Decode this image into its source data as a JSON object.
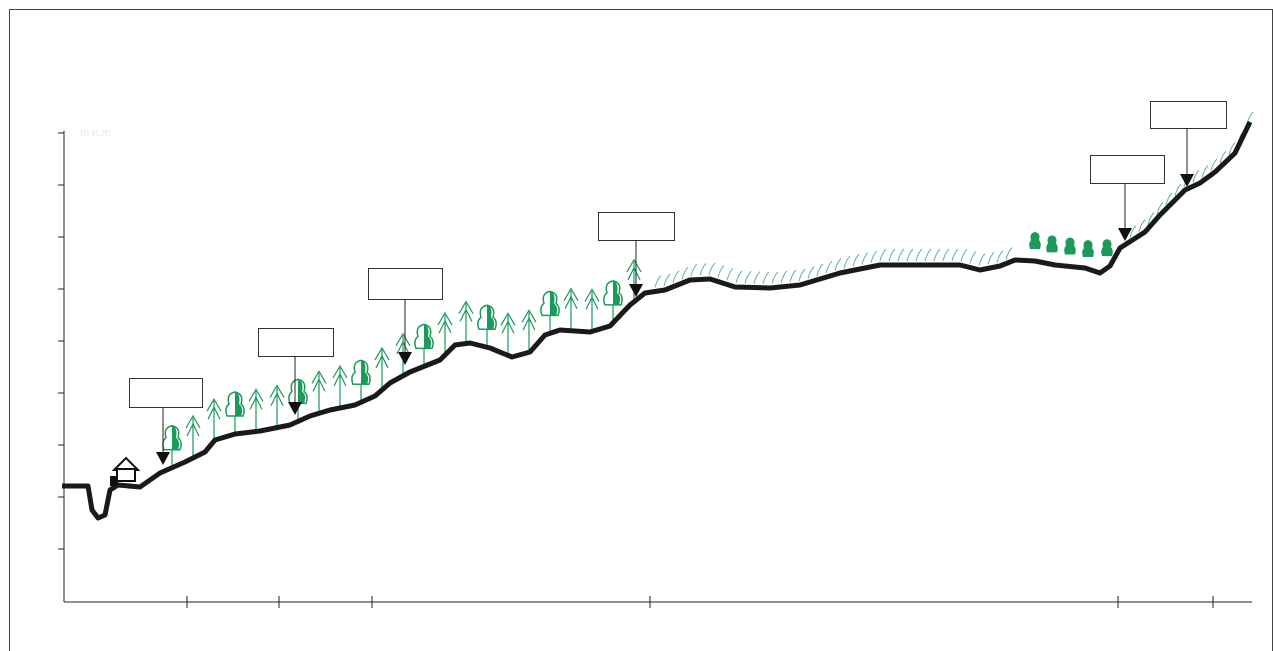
{
  "axis": {
    "y_label": "m n.m."
  }
}
